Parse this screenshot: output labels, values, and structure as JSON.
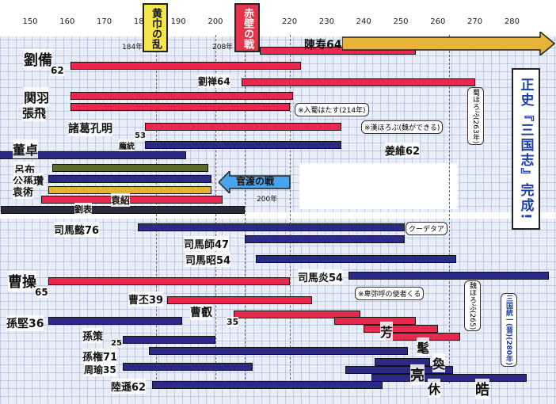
{
  "years": [
    "150",
    "160",
    "170",
    "180",
    "190",
    "200",
    "210",
    "220",
    "230",
    "240",
    "250",
    "260",
    "270",
    "280"
  ],
  "title": {
    "main": "正史『三国志』完成!"
  },
  "events": {
    "yellow_turban": "黄巾の乱",
    "yellow_turban_year": "184年",
    "red_cliffs": "赤壁の戦",
    "red_cliffs_year": "208年",
    "guandu": "官渡の戦",
    "guandu_year": "200年"
  },
  "notes": {
    "shu": "※入蜀はたす(214年)",
    "han": "※漢ほろぶ(魏ができる)",
    "coup": "クーデタア",
    "himiko": "※卑弥呼の使者くる",
    "shu_end": "蜀ほろぶ(263年)",
    "wei_end": "魏ほろぶ(265)",
    "unify": "三国統一(晋)(280年)"
  },
  "people": {
    "chenshou": "陳寿64",
    "liubei": "劉備",
    "liubei_age": "62",
    "guanyu": "関羽",
    "zhangfei": "張飛",
    "zhuge": "諸葛孔明",
    "zhuge_age": "53",
    "liushan": "劉禅64",
    "pangtong": "龐統",
    "jiangwei": "姜維62",
    "dongzhuo": "董卓",
    "lubu": "呂布",
    "gongsun": "公孫瓚",
    "yuanshu": "袁術",
    "yuanshao": "袁紹",
    "liubiao": "劉表",
    "simayi": "司馬懿76",
    "simashi": "司馬師47",
    "simazhao": "司馬昭54",
    "simayan": "司馬炎54",
    "caocao": "曹操",
    "caocao_age": "65",
    "caopi": "曹丕39",
    "caorui": "曹叡",
    "caorui_age": "35",
    "caofang": "芳",
    "caomao": "髦",
    "caohuan": "奐",
    "sunjian": "孫堅36",
    "sunce": "孫策",
    "sunce_age": "25",
    "sunquan": "孫権71",
    "zhouyu": "周瑜35",
    "lusu": "陸遜62",
    "sunliang": "亮",
    "sunxiu": "休",
    "sunhao": "皓"
  },
  "colors": {
    "red": "#e8284e",
    "navy": "#2b2a86",
    "olive": "#5c6a2a",
    "yellow": "#e2b432",
    "dark": "#2a2a3a"
  }
}
